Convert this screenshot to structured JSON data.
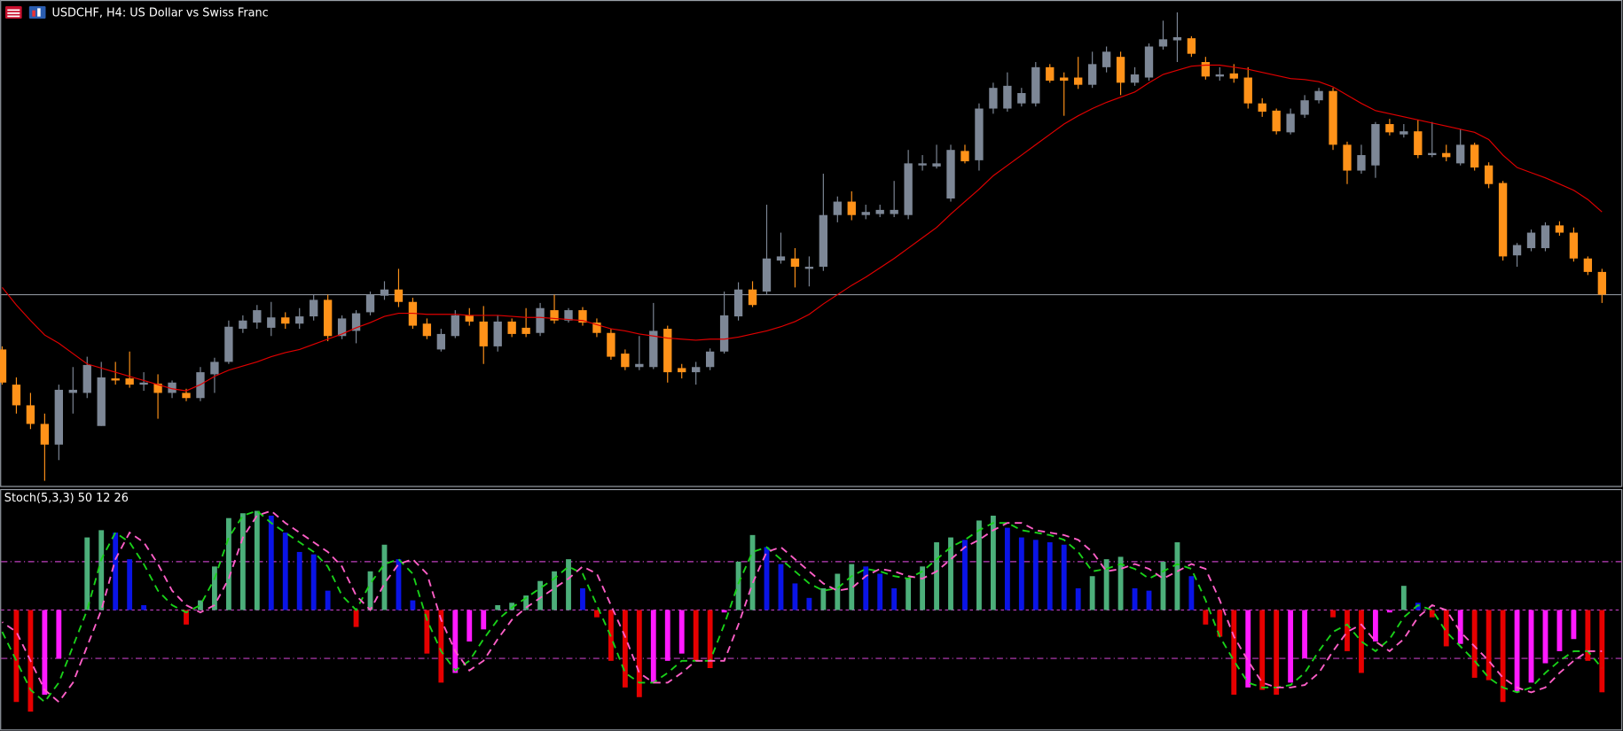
{
  "chart_data": [
    {
      "type": "candlestick",
      "title": "USDCHF, H4:  US Dollar vs Swiss Franc",
      "open": [
        132,
        98,
        78,
        60,
        40,
        90,
        90,
        58,
        104,
        104,
        98,
        99,
        90,
        90,
        85,
        108,
        120,
        152,
        158,
        153,
        163,
        157,
        164,
        180,
        145,
        150,
        168,
        184,
        190,
        178,
        157,
        132,
        145,
        165,
        159,
        135,
        159,
        153,
        148,
        170,
        160,
        170,
        158,
        148,
        128,
        115,
        115,
        152,
        114,
        110,
        115,
        130,
        164,
        190,
        188,
        218,
        220,
        210,
        212,
        262,
        275,
        262,
        263,
        263,
        262,
        310,
        309,
        278,
        324,
        315,
        365,
        365,
        370,
        370,
        405,
        395,
        395,
        388,
        405,
        415,
        390,
        395,
        425,
        431,
        433,
        410,
        396,
        399,
        395,
        370,
        363,
        342,
        359,
        373,
        382,
        330,
        305,
        310,
        350,
        340,
        343,
        320,
        322,
        312,
        330,
        310,
        293,
        223,
        230,
        230,
        252,
        245,
        220,
        207
      ],
      "high": [
        135,
        105,
        90,
        70,
        98,
        115,
        125,
        120,
        120,
        130,
        110,
        108,
        102,
        94,
        115,
        124,
        160,
        165,
        175,
        178,
        168,
        172,
        185,
        185,
        165,
        170,
        188,
        198,
        210,
        182,
        162,
        152,
        170,
        172,
        174,
        165,
        162,
        172,
        177,
        185,
        172,
        173,
        162,
        152,
        132,
        145,
        177,
        155,
        118,
        120,
        133,
        188,
        197,
        198,
        272,
        245,
        230,
        222,
        302,
        280,
        285,
        272,
        272,
        295,
        325,
        320,
        330,
        330,
        330,
        370,
        390,
        400,
        385,
        410,
        408,
        400,
        415,
        420,
        425,
        420,
        405,
        428,
        450,
        458,
        435,
        415,
        405,
        408,
        405,
        375,
        365,
        365,
        378,
        385,
        385,
        333,
        330,
        352,
        355,
        350,
        354,
        352,
        330,
        345,
        332,
        313,
        295,
        235,
        248,
        255,
        256,
        250,
        222,
        210
      ],
      "low": [
        98,
        70,
        55,
        5,
        25,
        70,
        85,
        58,
        98,
        95,
        92,
        65,
        85,
        82,
        82,
        90,
        118,
        148,
        152,
        145,
        152,
        152,
        160,
        140,
        142,
        138,
        165,
        180,
        173,
        152,
        142,
        130,
        143,
        155,
        118,
        130,
        144,
        144,
        145,
        157,
        158,
        155,
        144,
        122,
        112,
        112,
        113,
        100,
        104,
        98,
        112,
        128,
        160,
        173,
        185,
        215,
        192,
        193,
        208,
        255,
        257,
        258,
        260,
        260,
        258,
        305,
        307,
        275,
        312,
        305,
        360,
        362,
        367,
        367,
        390,
        358,
        384,
        385,
        400,
        378,
        387,
        392,
        422,
        410,
        415,
        393,
        392,
        390,
        365,
        357,
        340,
        340,
        356,
        370,
        325,
        292,
        302,
        298,
        339,
        337,
        317,
        318,
        314,
        310,
        305,
        288,
        218,
        212,
        227,
        227,
        242,
        217,
        204,
        177
      ],
      "close": [
        100,
        78,
        60,
        40,
        93,
        93,
        117,
        105,
        102,
        98,
        100,
        90,
        100,
        85,
        110,
        120,
        154,
        160,
        170,
        163,
        157,
        164,
        180,
        145,
        162,
        167,
        185,
        190,
        178,
        155,
        145,
        147,
        165,
        159,
        135,
        159,
        147,
        147,
        172,
        160,
        170,
        158,
        148,
        125,
        115,
        118,
        150,
        110,
        110,
        115,
        130,
        165,
        190,
        175,
        220,
        222,
        212,
        212,
        262,
        275,
        262,
        265,
        267,
        267,
        312,
        312,
        312,
        325,
        314,
        365,
        385,
        387,
        380,
        405,
        392,
        392,
        388,
        408,
        420,
        390,
        398,
        425,
        432,
        434,
        418,
        396,
        398,
        394,
        370,
        362,
        343,
        360,
        373,
        382,
        330,
        305,
        320,
        350,
        342,
        343,
        320,
        322,
        318,
        330,
        308,
        292,
        222,
        233,
        245,
        252,
        245,
        220,
        207,
        185
      ],
      "up_color": "#7d8796",
      "down_color": "#ff9219",
      "series": [
        {
          "color": "#e00000",
          "values": [
            192,
            175,
            160,
            146,
            138,
            128,
            118,
            114,
            110,
            106,
            102,
            98,
            94,
            92,
            98,
            106,
            112,
            116,
            120,
            125,
            129,
            132,
            137,
            142,
            147,
            153,
            158,
            164,
            167,
            167,
            166,
            166,
            166,
            165,
            165,
            165,
            164,
            163,
            163,
            162,
            161,
            160,
            156,
            152,
            150,
            147,
            145,
            143,
            142,
            141,
            142,
            142,
            144,
            147,
            150,
            154,
            159,
            166,
            176,
            185,
            194,
            202,
            211,
            220,
            230,
            240,
            250,
            263,
            275,
            287,
            300,
            310,
            320,
            330,
            340,
            350,
            358,
            365,
            371,
            376,
            381,
            390,
            398,
            402,
            406,
            407,
            407,
            405,
            403,
            400,
            397,
            394,
            393,
            391,
            386,
            378,
            370,
            363,
            360,
            357,
            354,
            351,
            348,
            345,
            342,
            335,
            320,
            308,
            303,
            298,
            292,
            286,
            277,
            265
          ]
        }
      ],
      "hline": 185,
      "hline_color": "#8a9099",
      "ylim": [
        0,
        470
      ]
    },
    {
      "type": "stochastic-histogram",
      "title": "Stoch(5,3,3) 50 12 26",
      "values": [
        50,
        12,
        8,
        15,
        30,
        50,
        80,
        83,
        82,
        71,
        52,
        50,
        50,
        44,
        54,
        68,
        88,
        90,
        91,
        89,
        82,
        74,
        73,
        58,
        50,
        43,
        66,
        77,
        71,
        54,
        32,
        20,
        24,
        37,
        42,
        52,
        53,
        56,
        62,
        66,
        71,
        59,
        47,
        29,
        18,
        14,
        20,
        29,
        32,
        29,
        26,
        49,
        70,
        81,
        76,
        69,
        61,
        55,
        59,
        65,
        69,
        68,
        65,
        59,
        63,
        68,
        78,
        80,
        79,
        87,
        89,
        84,
        80,
        79,
        78,
        77,
        59,
        64,
        71,
        72,
        59,
        58,
        70,
        78,
        64,
        44,
        39,
        15,
        18,
        17,
        15,
        20,
        30,
        50,
        47,
        33,
        24,
        37,
        49,
        60,
        53,
        47,
        35,
        36,
        22,
        21,
        12,
        16,
        20,
        28,
        33,
        38,
        29,
        16
      ],
      "bar_colors": {
        "rising_above": "#4caf7a",
        "falling_above": "#0a14e6",
        "falling_below": "#e60000",
        "rising_below": "#ff1aff"
      },
      "series": [
        {
          "color": "#19d219",
          "values": [
            41,
            29,
            17,
            12,
            20,
            35,
            50,
            71,
            82,
            78,
            69,
            58,
            52,
            49,
            52,
            63,
            80,
            89,
            91,
            86,
            82,
            78,
            74,
            68,
            56,
            50,
            61,
            69,
            71,
            65,
            46,
            33,
            25,
            29,
            38,
            46,
            51,
            55,
            59,
            63,
            68,
            65,
            52,
            39,
            24,
            20,
            20,
            24,
            29,
            29,
            29,
            44,
            61,
            74,
            76,
            71,
            66,
            61,
            58,
            59,
            64,
            67,
            66,
            64,
            63,
            66,
            71,
            76,
            79,
            83,
            86,
            86,
            83,
            82,
            81,
            79,
            74,
            66,
            67,
            69,
            67,
            63,
            66,
            69,
            67,
            54,
            39,
            29,
            20,
            18,
            18,
            19,
            24,
            33,
            41,
            44,
            37,
            33,
            38,
            47,
            52,
            50,
            41,
            35,
            29,
            22,
            18,
            16,
            18,
            24,
            29,
            33,
            33,
            26
          ]
        },
        {
          "color": "#ff5fc8",
          "values": [
            45,
            41,
            29,
            17,
            12,
            20,
            35,
            50,
            71,
            82,
            78,
            69,
            58,
            52,
            49,
            52,
            63,
            80,
            89,
            91,
            86,
            82,
            78,
            74,
            68,
            56,
            50,
            61,
            69,
            71,
            65,
            46,
            33,
            25,
            29,
            38,
            46,
            51,
            55,
            59,
            63,
            68,
            65,
            52,
            39,
            24,
            20,
            20,
            24,
            29,
            29,
            29,
            44,
            61,
            74,
            76,
            71,
            66,
            61,
            58,
            59,
            64,
            67,
            66,
            64,
            63,
            66,
            71,
            76,
            79,
            83,
            86,
            86,
            83,
            82,
            81,
            79,
            74,
            66,
            67,
            69,
            67,
            63,
            66,
            69,
            67,
            54,
            39,
            29,
            20,
            18,
            18,
            19,
            24,
            33,
            41,
            44,
            37,
            33,
            38,
            47,
            52,
            50,
            41,
            35,
            29,
            22,
            18,
            16,
            18,
            24,
            29,
            33,
            33
          ]
        }
      ],
      "ylim": [
        0,
        100
      ],
      "yticks": [
        30,
        50,
        70
      ],
      "level_color": "#c040c0"
    }
  ]
}
